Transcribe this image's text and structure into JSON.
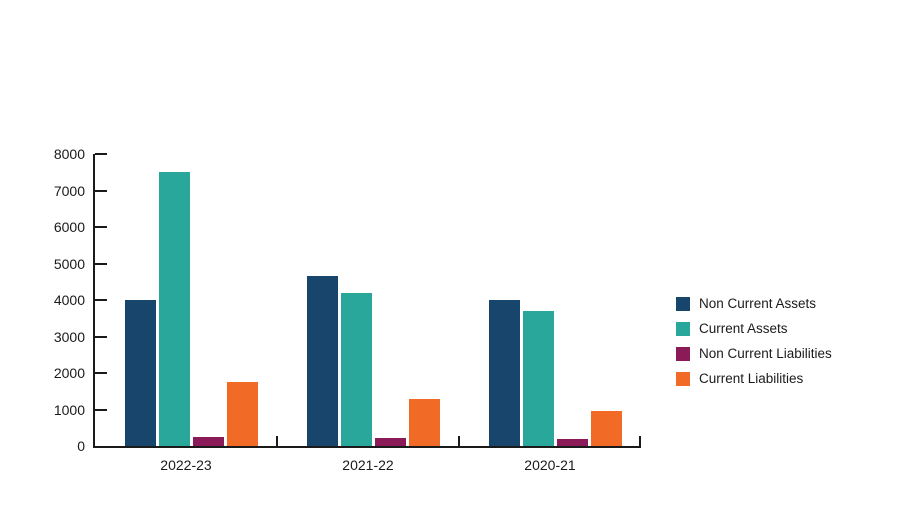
{
  "chart_data": {
    "type": "bar",
    "title": "",
    "xlabel": "",
    "ylabel": "",
    "categories": [
      "2022-23",
      "2021-22",
      "2020-21"
    ],
    "series": [
      {
        "name": "Non Current Assets",
        "color": "#17456B",
        "values": [
          4000,
          4650,
          4000
        ]
      },
      {
        "name": "Current Assets",
        "color": "#2AA79B",
        "values": [
          7500,
          4200,
          3700
        ]
      },
      {
        "name": "Non Current Liabilities",
        "color": "#8A1A58",
        "values": [
          250,
          220,
          190
        ]
      },
      {
        "name": "Current Liabilities",
        "color": "#F16A26",
        "values": [
          1750,
          1300,
          950
        ]
      }
    ],
    "ylim": [
      0,
      8000
    ],
    "yticks": [
      0,
      1000,
      2000,
      3000,
      4000,
      5000,
      6000,
      7000,
      8000
    ],
    "grid": false,
    "legend_position": "right",
    "colors": {
      "axis": "#1a1a1a",
      "text": "#1a1a1a",
      "background": "#ffffff"
    }
  }
}
